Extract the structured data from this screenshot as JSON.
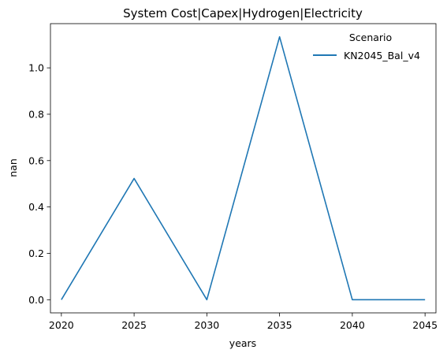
{
  "chart_data": {
    "type": "line",
    "title": "System Cost|Capex|Hydrogen|Electricity",
    "xlabel": "years",
    "ylabel": "nan",
    "x": [
      2020,
      2025,
      2030,
      2035,
      2040,
      2045
    ],
    "xticks": [
      "2020",
      "2025",
      "2030",
      "2035",
      "2040",
      "2045"
    ],
    "yticks": [
      "0.0",
      "0.2",
      "0.4",
      "0.6",
      "0.8",
      "1.0"
    ],
    "xlim": [
      2019.25,
      2045.75
    ],
    "ylim": [
      -0.0567,
      1.1907
    ],
    "grid": false,
    "legend": {
      "title": "Scenario",
      "placement": "top-right"
    },
    "series": [
      {
        "name": "KN2045_Bal_v4",
        "color": "#1f77b4",
        "values": [
          0.0,
          0.523,
          0.0,
          1.134,
          0.0,
          0.0
        ]
      }
    ]
  }
}
